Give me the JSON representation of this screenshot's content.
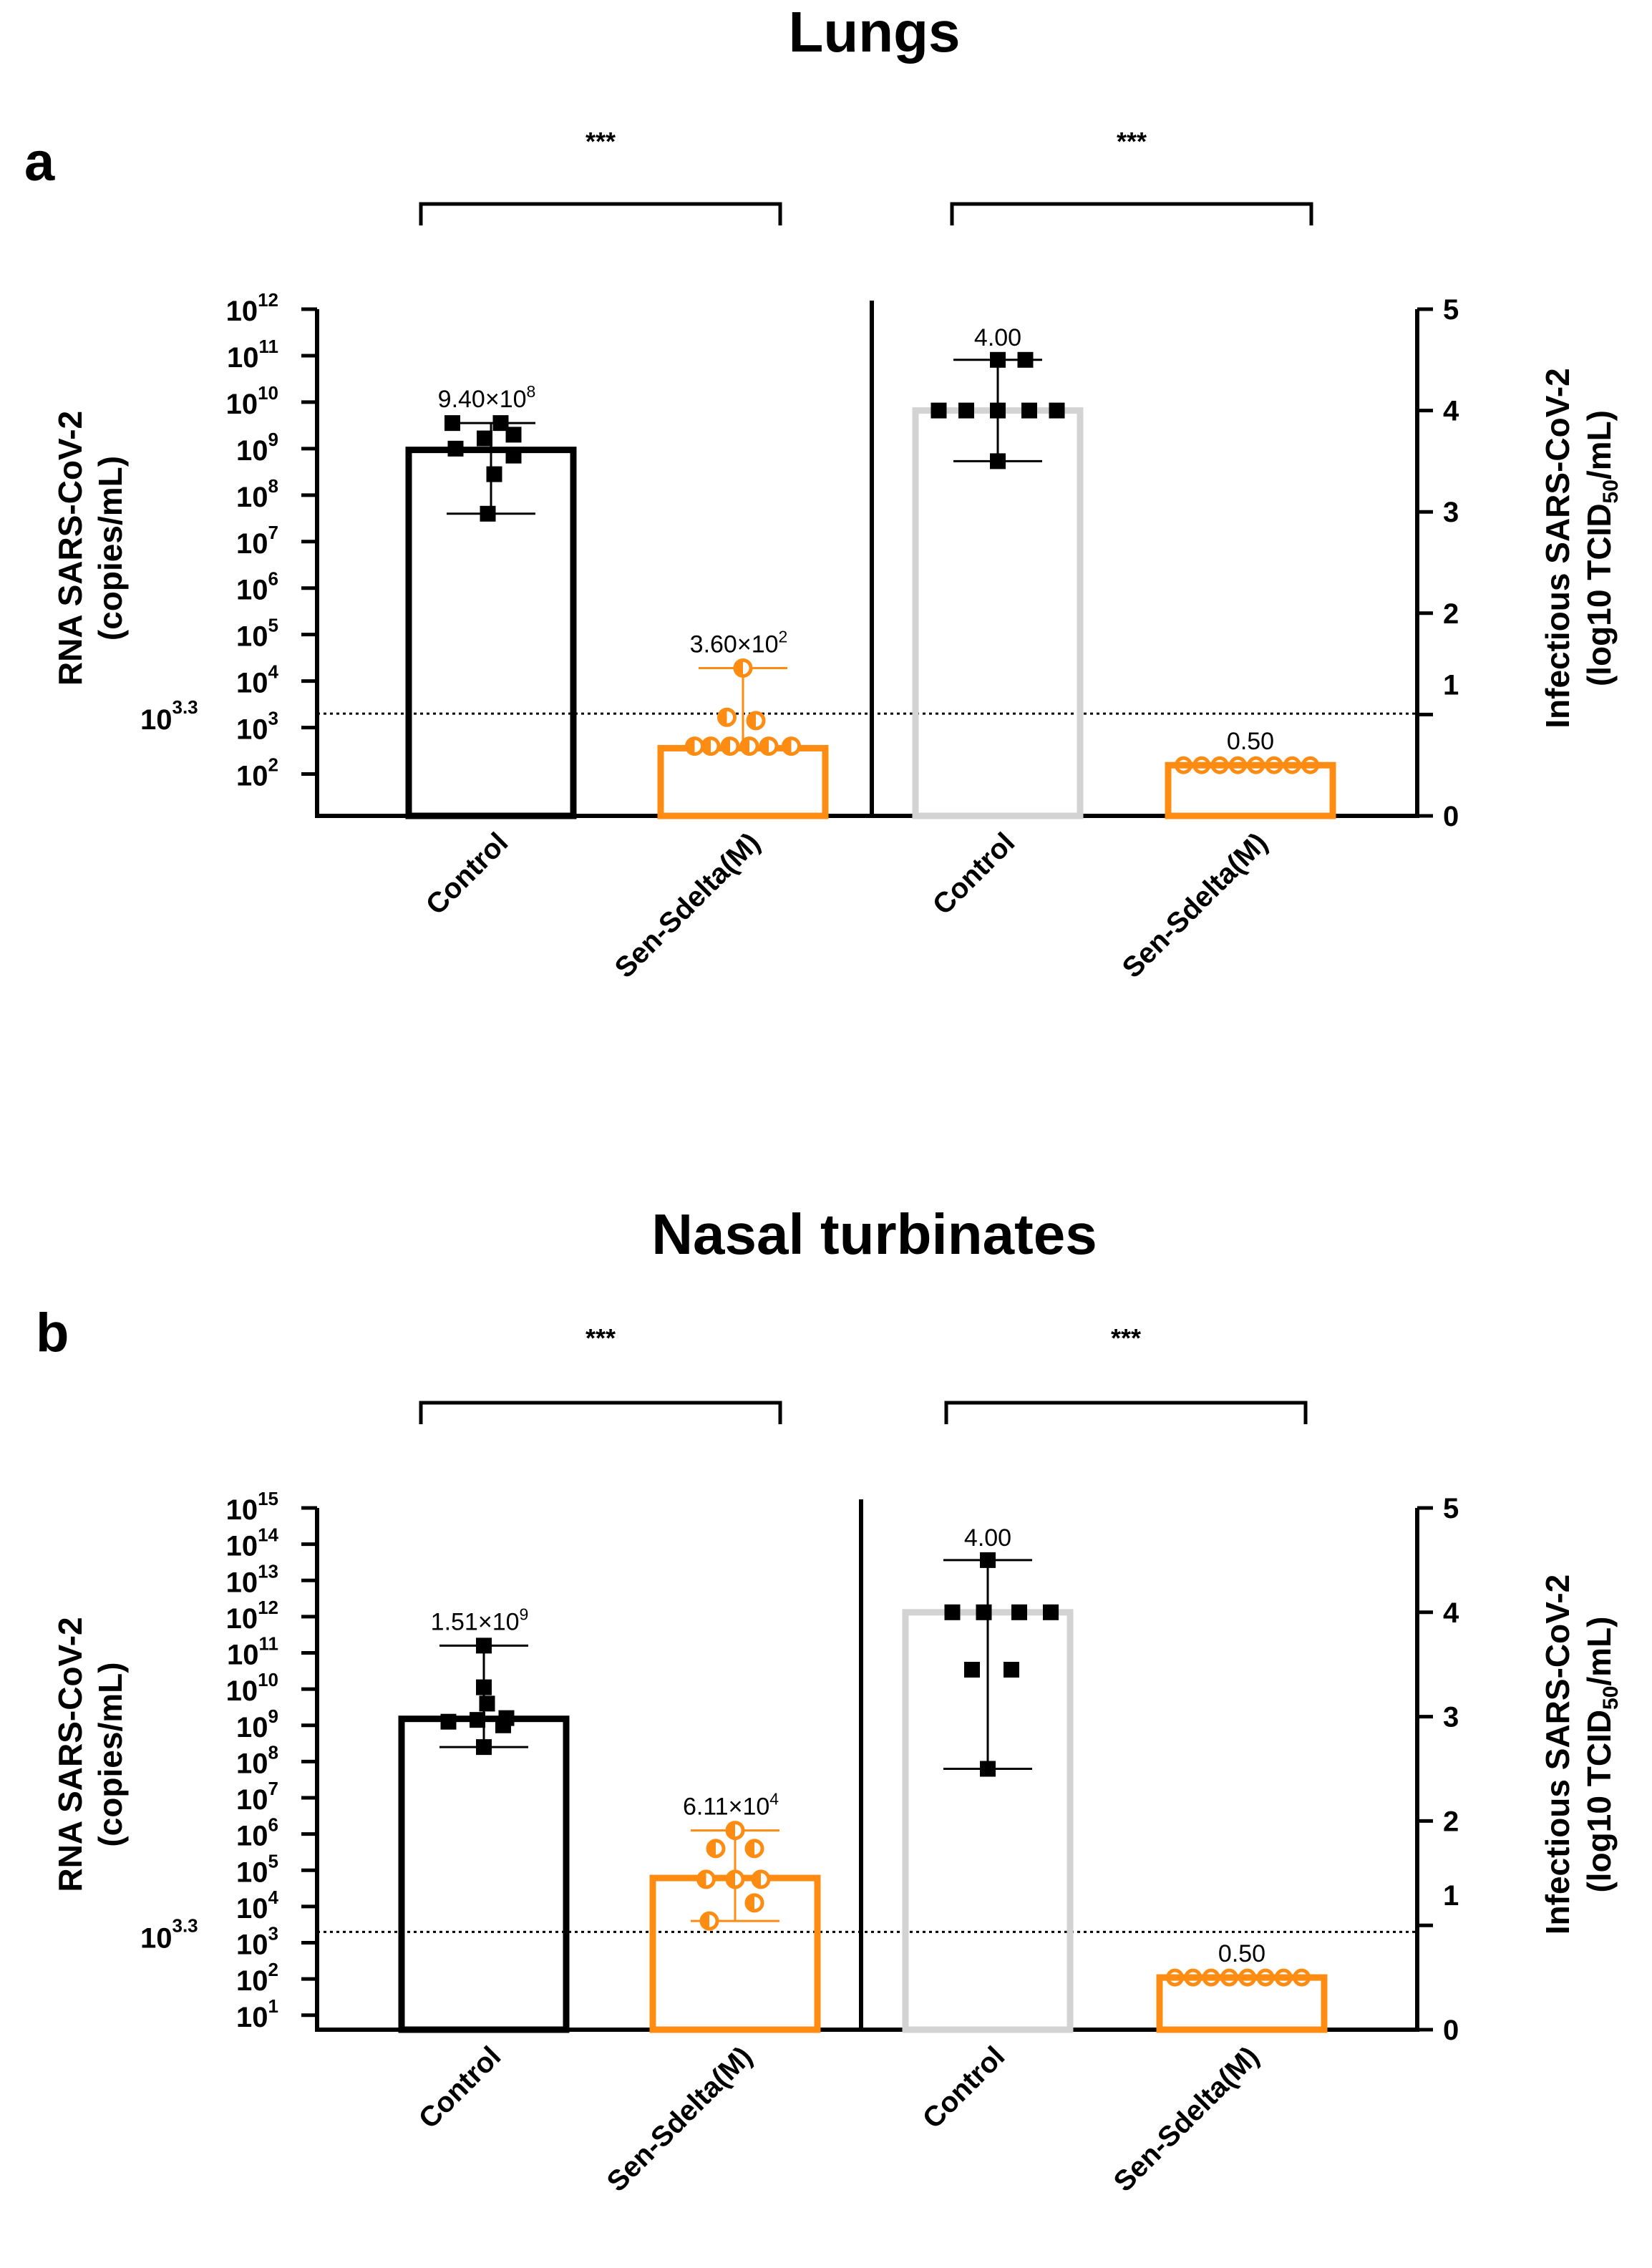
{
  "colors": {
    "black": "#000000",
    "orange": "#FF8C12",
    "gray": "#D3D3D3"
  },
  "chart_data": [
    {
      "title": "Lungs",
      "panel": "a",
      "left": {
        "type": "bar",
        "ylabel_line1": "RNA SARS-CoV-2",
        "ylabel_line2": "(copies/mL)",
        "yscale": "log",
        "ylim_exp": [
          1.1,
          12
        ],
        "yticks_exp": [
          2,
          3,
          4,
          5,
          6,
          7,
          8,
          9,
          10,
          11,
          12
        ],
        "threshold_label": "10",
        "threshold_sup": "3.3",
        "threshold_exp": 3.3,
        "categories": [
          "Control",
          "Sen-Sdelta(M)"
        ],
        "bars": [
          {
            "category": "Control",
            "color": "#000000",
            "marker": "square",
            "value_exp": 8.973,
            "label_base": "9.40×10",
            "label_sup": "8",
            "err_exp": [
              7.6,
              9.55
            ],
            "points_exp": [
              {
                "x": -0.6,
                "y": 9.55
              },
              {
                "x": 0.15,
                "y": 9.55
              },
              {
                "x": -0.1,
                "y": 9.22
              },
              {
                "x": 0.35,
                "y": 9.3
              },
              {
                "x": -0.55,
                "y": 9.0
              },
              {
                "x": 0.35,
                "y": 8.85
              },
              {
                "x": 0.05,
                "y": 8.45
              },
              {
                "x": -0.05,
                "y": 7.6
              }
            ]
          },
          {
            "category": "Sen-Sdelta(M)",
            "color": "#FF8C12",
            "marker": "half-circle",
            "value_exp": 2.556,
            "label_base": "3.60×10",
            "label_sup": "2",
            "err_exp": [
              2.6,
              4.28
            ],
            "points_exp": [
              {
                "x": 0,
                "y": 4.28
              },
              {
                "x": -0.25,
                "y": 3.22
              },
              {
                "x": 0.2,
                "y": 3.15
              },
              {
                "x": -0.75,
                "y": 2.6
              },
              {
                "x": -0.5,
                "y": 2.6
              },
              {
                "x": -0.2,
                "y": 2.6
              },
              {
                "x": 0.1,
                "y": 2.6
              },
              {
                "x": 0.4,
                "y": 2.6
              },
              {
                "x": 0.75,
                "y": 2.6
              }
            ]
          }
        ]
      },
      "right": {
        "type": "bar",
        "ylabel_line1": "Infectious SARS-CoV-2",
        "ylabel_line2_a": "(log10 TCID",
        "ylabel_line2_sub": "50",
        "ylabel_line2_b": "/mL)",
        "ylim": [
          0,
          5
        ],
        "yticks": [
          "0",
          "1",
          "2",
          "3",
          "4",
          "5"
        ],
        "categories": [
          "Control",
          "Sen-Sdelta(M)"
        ],
        "bars": [
          {
            "category": "Control",
            "color": "#D3D3D3",
            "marker": "square",
            "value": 4.0,
            "label": "4.00",
            "err": [
              3.5,
              4.5
            ],
            "points": [
              {
                "x": 0,
                "y": 4.5
              },
              {
                "x": 0.35,
                "y": 4.5
              },
              {
                "x": -0.75,
                "y": 4.0
              },
              {
                "x": -0.4,
                "y": 4.0
              },
              {
                "x": 0,
                "y": 4.0
              },
              {
                "x": 0.4,
                "y": 4.0
              },
              {
                "x": 0.75,
                "y": 4.0
              },
              {
                "x": 0,
                "y": 3.5
              }
            ]
          },
          {
            "category": "Sen-Sdelta(M)",
            "color": "#FF8C12",
            "marker": "circle",
            "value": 0.5,
            "label": "0.50",
            "err": [
              0.5,
              0.5
            ],
            "points": [
              {
                "x": -0.85,
                "y": 0.5
              },
              {
                "x": -0.62,
                "y": 0.5
              },
              {
                "x": -0.39,
                "y": 0.5
              },
              {
                "x": -0.16,
                "y": 0.5
              },
              {
                "x": 0.07,
                "y": 0.5
              },
              {
                "x": 0.3,
                "y": 0.5
              },
              {
                "x": 0.53,
                "y": 0.5
              },
              {
                "x": 0.76,
                "y": 0.5
              }
            ]
          }
        ]
      },
      "significance": [
        "***",
        "***"
      ]
    },
    {
      "title": "Nasal turbinates",
      "panel": "b",
      "left": {
        "type": "bar",
        "ylabel_line1": "RNA SARS-CoV-2",
        "ylabel_line2": "(copies/mL)",
        "yscale": "log",
        "ylim_exp": [
          0.6,
          15
        ],
        "yticks_exp": [
          1,
          2,
          3,
          4,
          5,
          6,
          7,
          8,
          9,
          10,
          11,
          12,
          13,
          14,
          15
        ],
        "threshold_label": "10",
        "threshold_sup": "3.3",
        "threshold_exp": 3.3,
        "categories": [
          "Control",
          "Sen-Sdelta(M)"
        ],
        "bars": [
          {
            "category": "Control",
            "color": "#000000",
            "marker": "square",
            "value_exp": 9.179,
            "label_base": "1.51×10",
            "label_sup": "9",
            "err_exp": [
              8.4,
              11.2
            ],
            "points_exp": [
              {
                "x": 0,
                "y": 11.2
              },
              {
                "x": 0,
                "y": 10.05
              },
              {
                "x": 0.05,
                "y": 9.6
              },
              {
                "x": -0.55,
                "y": 9.1
              },
              {
                "x": -0.1,
                "y": 9.15
              },
              {
                "x": 0.35,
                "y": 9.2
              },
              {
                "x": 0.3,
                "y": 9.0
              },
              {
                "x": 0,
                "y": 8.4
              }
            ]
          },
          {
            "category": "Sen-Sdelta(M)",
            "color": "#FF8C12",
            "marker": "half-circle",
            "value_exp": 4.786,
            "label_base": "6.11×10",
            "label_sup": "4",
            "err_exp": [
              3.6,
              6.1
            ],
            "points_exp": [
              {
                "x": 0,
                "y": 6.1
              },
              {
                "x": -0.3,
                "y": 5.6
              },
              {
                "x": 0.3,
                "y": 5.6
              },
              {
                "x": -0.45,
                "y": 4.75
              },
              {
                "x": 0,
                "y": 4.75
              },
              {
                "x": 0.4,
                "y": 4.75
              },
              {
                "x": 0.3,
                "y": 4.1
              },
              {
                "x": -0.4,
                "y": 3.6
              }
            ]
          }
        ]
      },
      "right": {
        "type": "bar",
        "ylabel_line1": "Infectious SARS-CoV-2",
        "ylabel_line2_a": "(log10 TCID",
        "ylabel_line2_sub": "50",
        "ylabel_line2_b": "/mL)",
        "ylim": [
          0,
          5
        ],
        "yticks": [
          "0",
          "1",
          "2",
          "3",
          "4",
          "5"
        ],
        "categories": [
          "Control",
          "Sen-Sdelta(M)"
        ],
        "bars": [
          {
            "category": "Control",
            "color": "#D3D3D3",
            "marker": "square",
            "value": 4.0,
            "label": "4.00",
            "err": [
              2.5,
              4.5
            ],
            "points": [
              {
                "x": 0,
                "y": 4.5
              },
              {
                "x": -0.45,
                "y": 4.0
              },
              {
                "x": -0.05,
                "y": 4.0
              },
              {
                "x": 0.4,
                "y": 4.0
              },
              {
                "x": 0.8,
                "y": 4.0
              },
              {
                "x": -0.2,
                "y": 3.45
              },
              {
                "x": 0.3,
                "y": 3.45
              },
              {
                "x": 0,
                "y": 2.5
              }
            ]
          },
          {
            "category": "Sen-Sdelta(M)",
            "color": "#FF8C12",
            "marker": "circle",
            "value": 0.5,
            "label": "0.50",
            "err": [
              0.5,
              0.5
            ],
            "points": [
              {
                "x": -0.85,
                "y": 0.5
              },
              {
                "x": -0.62,
                "y": 0.5
              },
              {
                "x": -0.39,
                "y": 0.5
              },
              {
                "x": -0.16,
                "y": 0.5
              },
              {
                "x": 0.07,
                "y": 0.5
              },
              {
                "x": 0.3,
                "y": 0.5
              },
              {
                "x": 0.53,
                "y": 0.5
              },
              {
                "x": 0.76,
                "y": 0.5
              }
            ]
          }
        ]
      },
      "significance": [
        "***",
        "***"
      ]
    }
  ]
}
